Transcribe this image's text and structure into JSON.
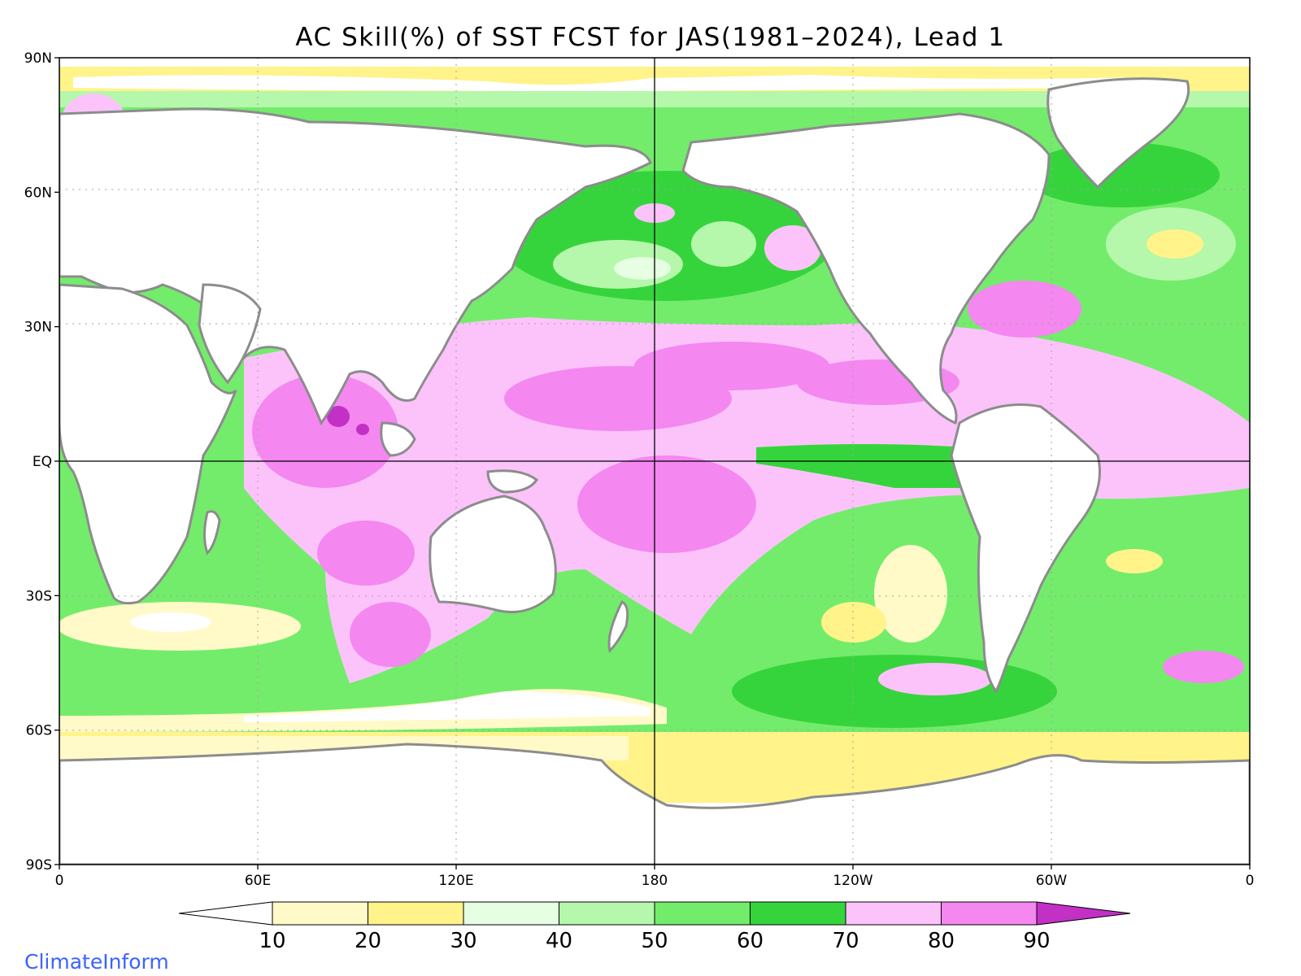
{
  "title": "AC Skill(%) of SST FCST for JAS(1981–2024), Lead 1",
  "credit": "ClimateInform",
  "colors": {
    "credit": "#3b63ff",
    "coast": "#8c8c8c",
    "grid": "#a0a0a0",
    "frame": "#000000"
  },
  "map": {
    "projection": "equirectangular",
    "lon_range": [
      0,
      360
    ],
    "lat_range": [
      -90,
      90
    ],
    "lat_ticks": [
      {
        "lat": 90,
        "label": "90N"
      },
      {
        "lat": 60,
        "label": "60N"
      },
      {
        "lat": 30,
        "label": "30N"
      },
      {
        "lat": 0,
        "label": "EQ"
      },
      {
        "lat": -30,
        "label": "30S"
      },
      {
        "lat": -60,
        "label": "60S"
      },
      {
        "lat": -90,
        "label": "90S"
      }
    ],
    "lon_ticks": [
      {
        "lon": 0,
        "label": "0"
      },
      {
        "lon": 60,
        "label": "60E"
      },
      {
        "lon": 120,
        "label": "120E"
      },
      {
        "lon": 180,
        "label": "180"
      },
      {
        "lon": 240,
        "label": "120W"
      },
      {
        "lon": 300,
        "label": "60W"
      },
      {
        "lon": 360,
        "label": "0"
      }
    ],
    "grid": "dotted",
    "reference_lines": [
      "equator",
      "dateline"
    ]
  },
  "colorbar": {
    "levels": [
      10,
      20,
      30,
      40,
      50,
      60,
      70,
      80,
      90
    ],
    "labels": [
      "10",
      "20",
      "30",
      "40",
      "50",
      "60",
      "70",
      "80",
      "90"
    ],
    "colors": [
      "#ffffff",
      "#fffac8",
      "#fff38a",
      "#e6ffe3",
      "#b5f7ab",
      "#73ec6b",
      "#36d43c",
      "#fcc3fb",
      "#f487f0",
      "#c330c6"
    ],
    "extend": "both"
  }
}
